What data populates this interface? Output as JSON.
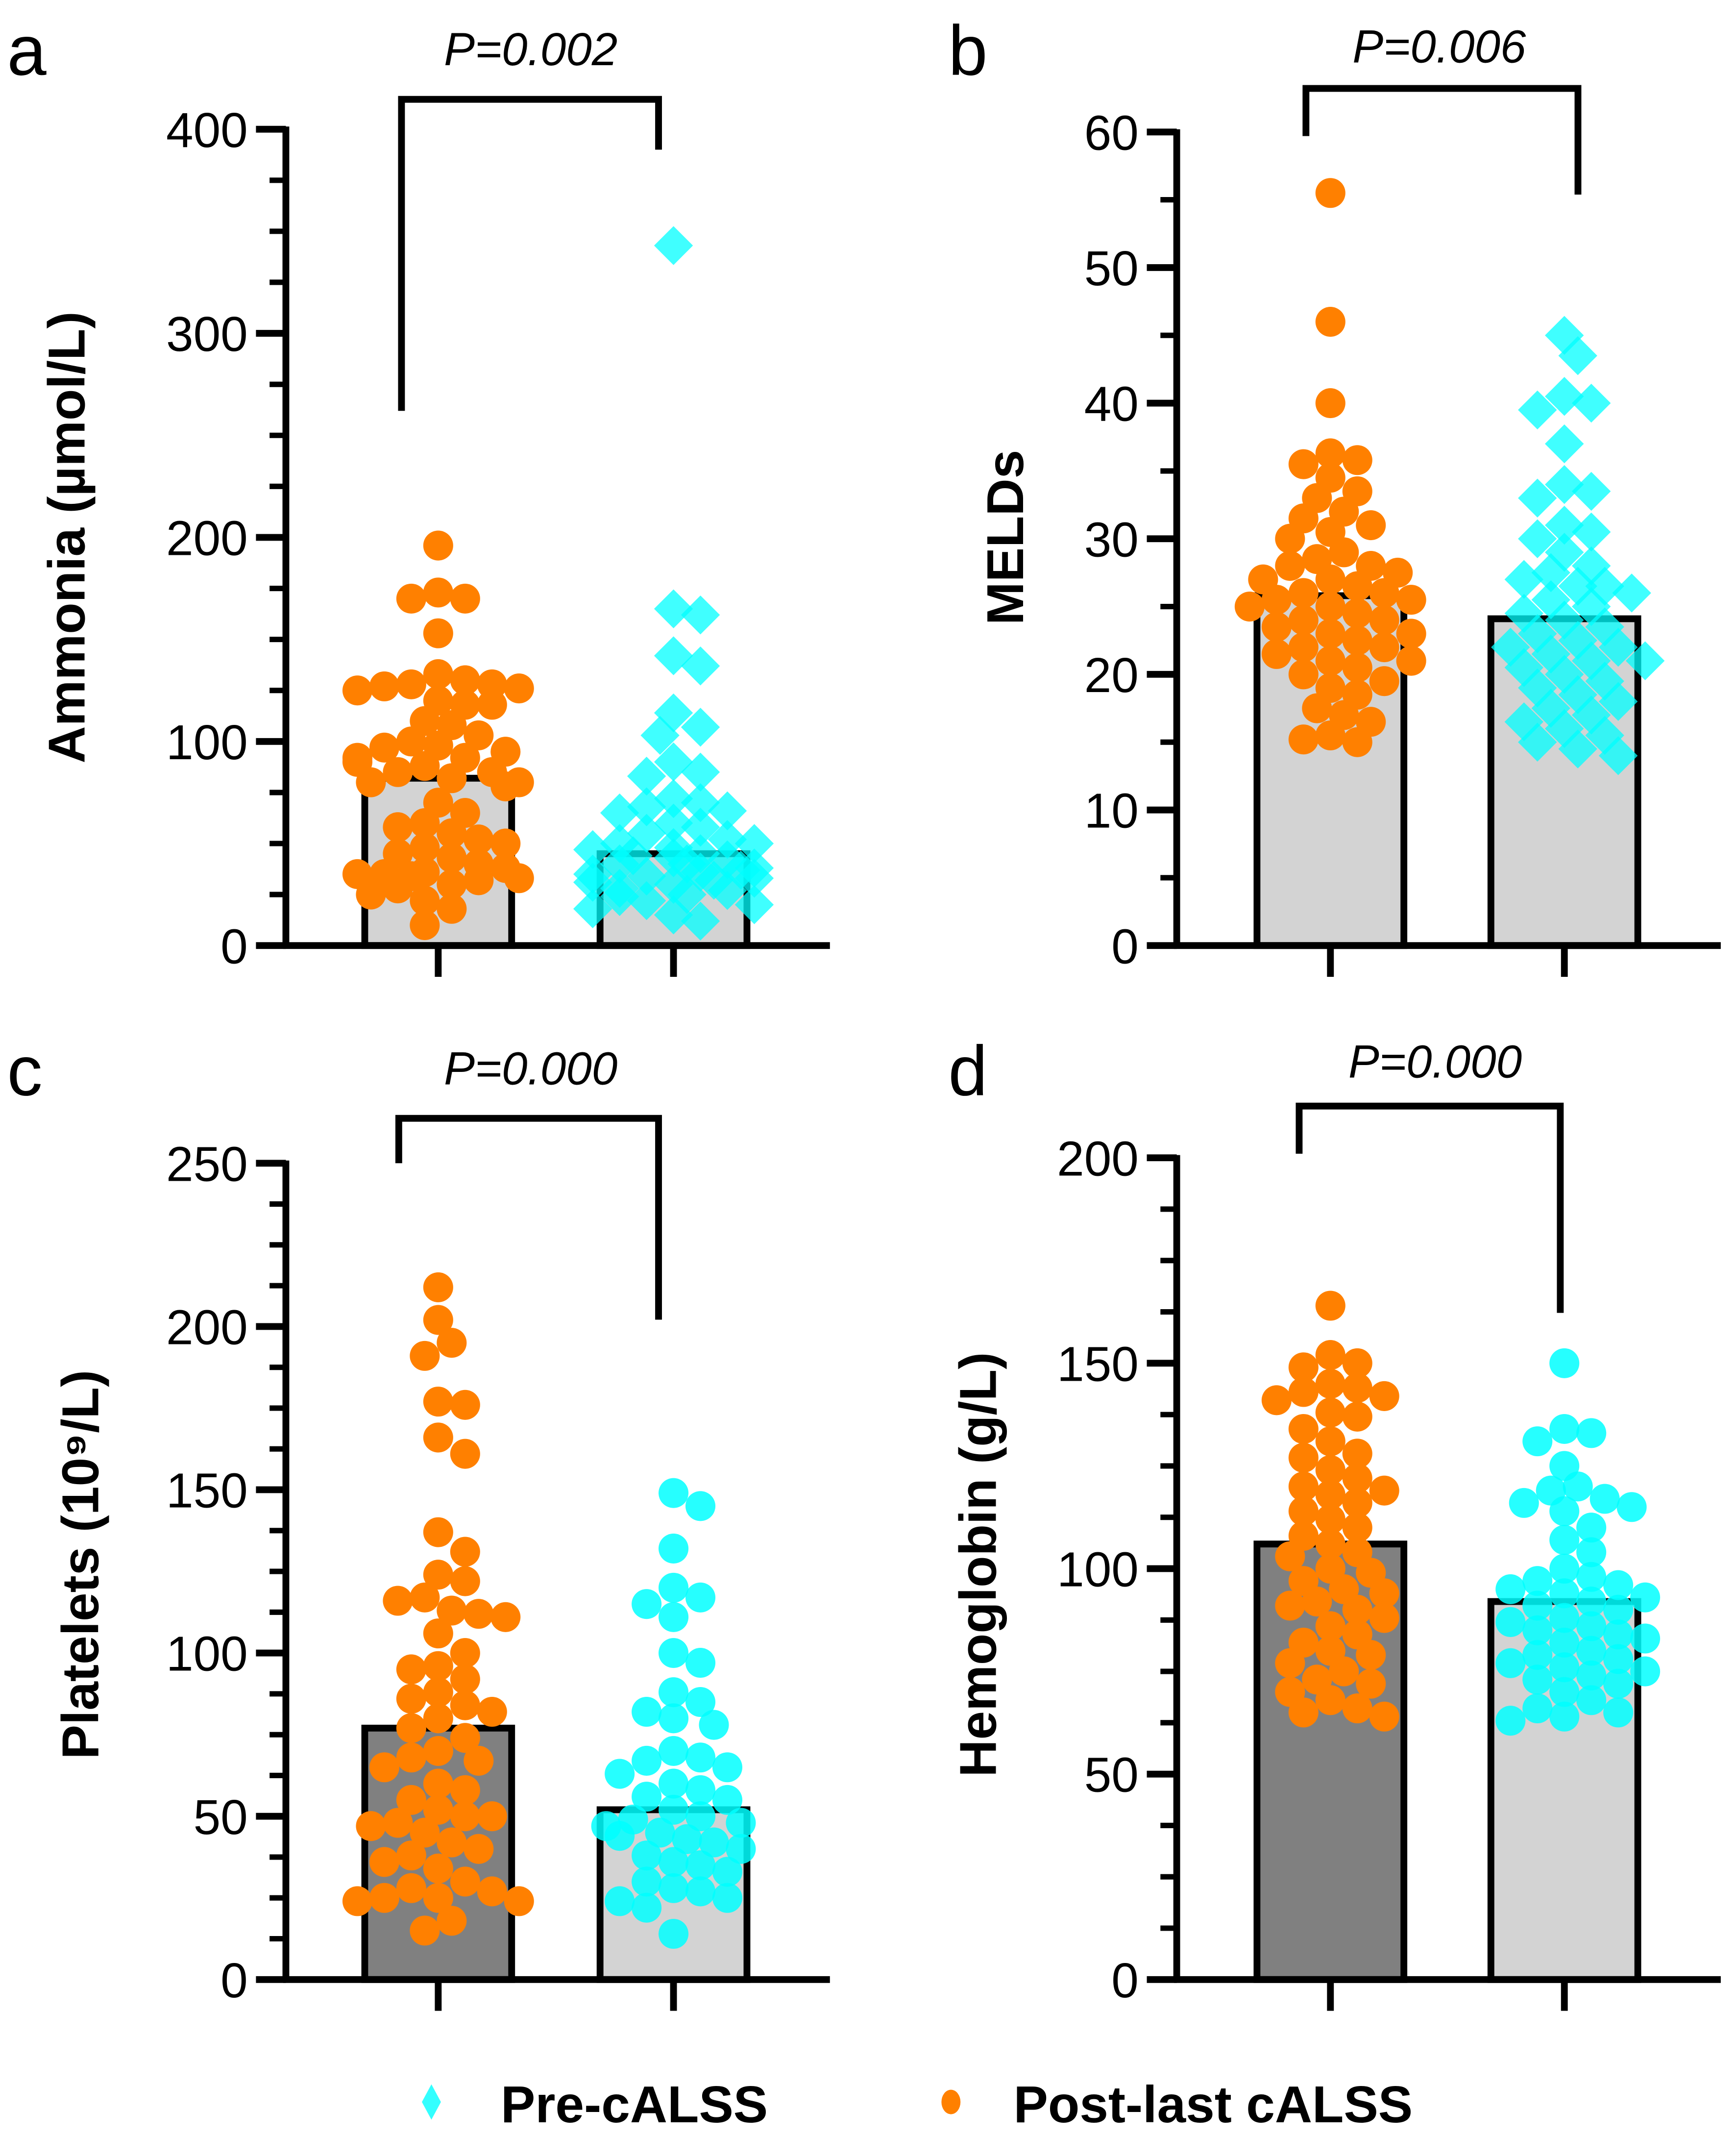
{
  "colors": {
    "post": "#FF8000",
    "pre": "#00FFFF",
    "bar_light": "#D3D3D3",
    "bar_dark": "#808080",
    "axis": "#000000"
  },
  "legend": {
    "position": "bottom",
    "items": [
      {
        "label": "Pre-cALSS",
        "marker": "diamond",
        "color": "#00FFFF"
      },
      {
        "label": "Post-last cALSS",
        "marker": "circle",
        "color": "#FF8000"
      }
    ]
  },
  "chart_data": [
    {
      "panel": "a",
      "type": "bar",
      "ylabel": "Ammonia (µmol/L)",
      "ylim": [
        0,
        400
      ],
      "yticks": [
        "0",
        "100",
        "200",
        "300",
        "400"
      ],
      "pvalue": "P=0.002",
      "series": [
        {
          "group": "Post-last cALSS",
          "bar_mean": 82,
          "bar_color": "light",
          "marker": "circle",
          "points": [
            196,
            173,
            170,
            170,
            153,
            133,
            130,
            128,
            128,
            127,
            126,
            125,
            120,
            118,
            118,
            110,
            108,
            103,
            100,
            98,
            97,
            95,
            92,
            92,
            90,
            88,
            85,
            85,
            82,
            80,
            80,
            78,
            70,
            65,
            60,
            58,
            55,
            52,
            50,
            48,
            45,
            43,
            40,
            38,
            36,
            35,
            35,
            34,
            33,
            32,
            30,
            28,
            25,
            22,
            18,
            10
          ]
        },
        {
          "group": "Pre-cALSS",
          "bar_mean": 45,
          "bar_color": "light",
          "marker": "diamond",
          "points": [
            343,
            165,
            162,
            142,
            137,
            114,
            107,
            103,
            90,
            85,
            83,
            72,
            70,
            68,
            66,
            65,
            60,
            58,
            55,
            52,
            50,
            50,
            48,
            47,
            45,
            44,
            43,
            42,
            40,
            40,
            38,
            37,
            36,
            35,
            34,
            33,
            32,
            31,
            30,
            28,
            27,
            25,
            24,
            22,
            20,
            18,
            15,
            12
          ]
        }
      ]
    },
    {
      "panel": "b",
      "type": "bar",
      "ylabel": "MELDs",
      "ylim": [
        0,
        60
      ],
      "yticks": [
        "0",
        "10",
        "20",
        "30",
        "40",
        "50",
        "60"
      ],
      "pvalue": "P=0.006",
      "series": [
        {
          "group": "Post-last cALSS",
          "bar_mean": 25.8,
          "bar_color": "light",
          "marker": "circle",
          "points": [
            55.5,
            46,
            40,
            36.3,
            35.8,
            35.5,
            34.5,
            33.5,
            33,
            32,
            31.5,
            31,
            30.5,
            30,
            29,
            28.5,
            28,
            28,
            27.5,
            27,
            27,
            26.5,
            26,
            26,
            25.5,
            25.5,
            25,
            25,
            24.5,
            24,
            24,
            23.5,
            23,
            23,
            22.5,
            22,
            22,
            21.5,
            21,
            21,
            20.5,
            20,
            19.5,
            19,
            18.5,
            17.5,
            17,
            16.5,
            15.5,
            15.2,
            15
          ]
        },
        {
          "group": "Pre-cALSS",
          "bar_mean": 24.1,
          "bar_color": "light",
          "marker": "diamond",
          "points": [
            45,
            43.5,
            40.5,
            40,
            39.5,
            37,
            34,
            33.5,
            33,
            31,
            30.5,
            30,
            29,
            28,
            27.5,
            27,
            26.5,
            26.5,
            26,
            25.5,
            25,
            24.5,
            24,
            23.5,
            23,
            22.5,
            22,
            22,
            21.5,
            21,
            21,
            20.5,
            20,
            19.5,
            19,
            18.5,
            18,
            17.5,
            17,
            16.5,
            16,
            15.5,
            15,
            14.5,
            14
          ]
        }
      ]
    },
    {
      "panel": "c",
      "type": "bar",
      "ylabel": "Platelets (10⁹/L)",
      "ylim": [
        0,
        250
      ],
      "yticks": [
        "0",
        "50",
        "100",
        "150",
        "200",
        "250"
      ],
      "pvalue": "P=0.000",
      "series": [
        {
          "group": "Post-last cALSS",
          "bar_mean": 77,
          "bar_color": "dark",
          "marker": "circle",
          "points": [
            212,
            202,
            195,
            191,
            177,
            176,
            166,
            161,
            137,
            131,
            124,
            122,
            117,
            116,
            113,
            112,
            111,
            106,
            100,
            96,
            95,
            92,
            88,
            86,
            84,
            82,
            80,
            77,
            74,
            70,
            68,
            67,
            65,
            60,
            58,
            55,
            52,
            50,
            50,
            48,
            47,
            45,
            42,
            40,
            38,
            36,
            34,
            30,
            28,
            27,
            25,
            25,
            24,
            24,
            18,
            15
          ]
        },
        {
          "group": "Pre-cALSS",
          "bar_mean": 52,
          "bar_color": "light",
          "marker": "circle",
          "points": [
            149,
            145,
            132,
            120,
            117,
            115,
            111,
            100,
            97,
            88,
            85,
            82,
            80,
            78,
            70,
            68,
            67,
            65,
            63,
            60,
            58,
            56,
            55,
            52,
            50,
            49,
            48,
            47,
            45,
            44,
            43,
            42,
            40,
            38,
            36,
            35,
            33,
            30,
            28,
            27,
            25,
            24,
            22,
            14
          ]
        }
      ]
    },
    {
      "panel": "d",
      "type": "bar",
      "ylabel": "Hemoglobin (g/L)",
      "ylim": [
        0,
        200
      ],
      "yticks": [
        "0",
        "50",
        "100",
        "150",
        "200"
      ],
      "pvalue": "P=0.000",
      "series": [
        {
          "group": "Post-last cALSS",
          "bar_mean": 106,
          "bar_color": "dark",
          "marker": "circle",
          "points": [
            164,
            152,
            150,
            149,
            145,
            144,
            143,
            142,
            141,
            138,
            137,
            134,
            131,
            128,
            127,
            124,
            122,
            120,
            119,
            118,
            116,
            114,
            112,
            110,
            108,
            106,
            104,
            103,
            100,
            99,
            97,
            95,
            94,
            92,
            91,
            90,
            88,
            86,
            84,
            82,
            80,
            79,
            77,
            75,
            73,
            72,
            70,
            68,
            66,
            65,
            64
          ]
        },
        {
          "group": "Pre-cALSS",
          "bar_mean": 92,
          "bar_color": "light",
          "marker": "circle",
          "points": [
            150,
            134,
            133,
            131,
            125,
            120,
            119,
            117,
            116,
            115,
            114,
            110,
            107,
            104,
            100,
            98,
            97,
            96,
            95,
            94,
            93,
            92,
            91,
            90,
            88,
            87,
            86,
            85,
            84,
            83,
            82,
            80,
            79,
            78,
            77,
            76,
            75,
            74,
            73,
            72,
            70,
            68,
            66,
            65,
            64,
            63
          ]
        }
      ]
    }
  ]
}
